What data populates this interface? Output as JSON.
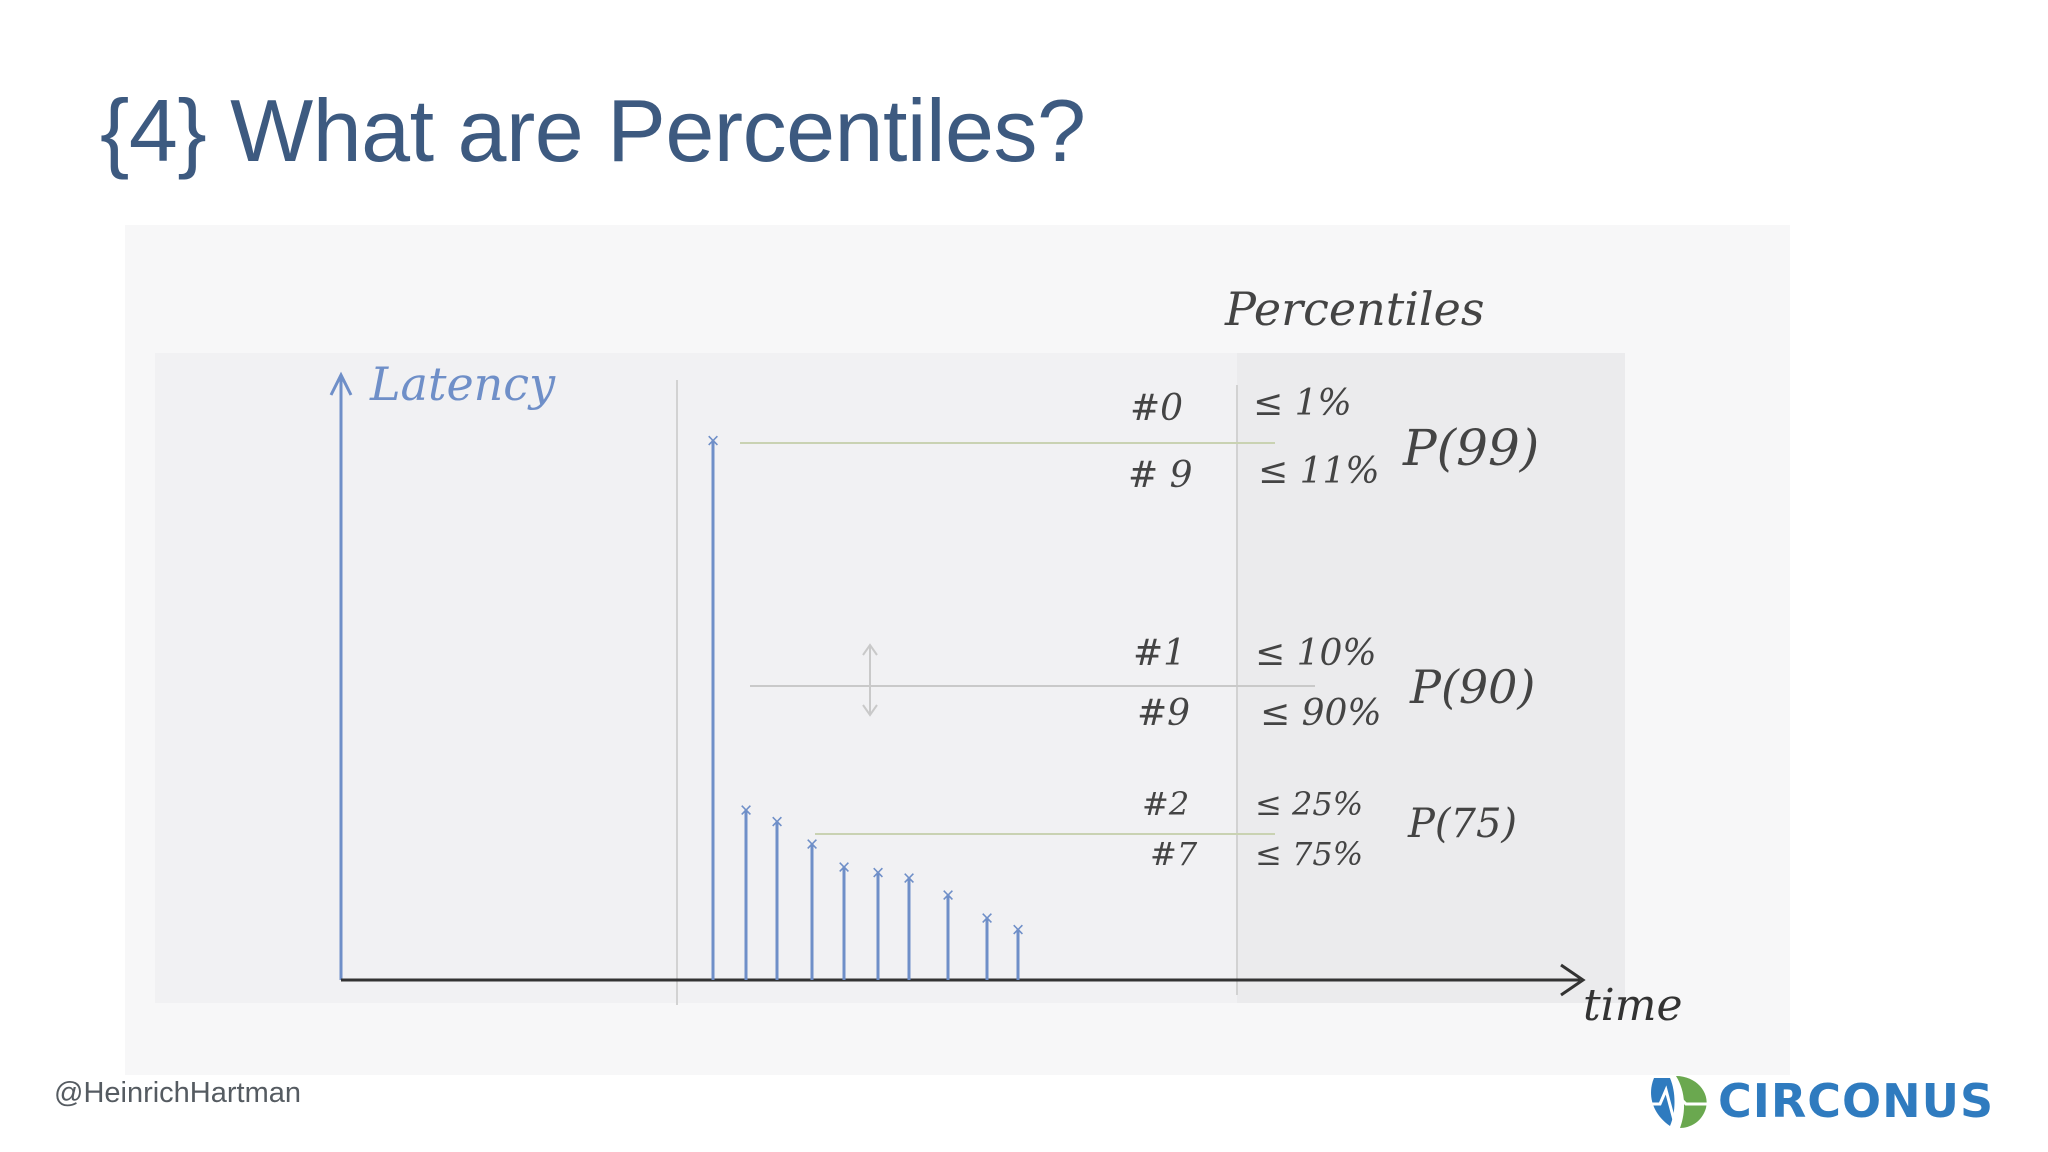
{
  "slide": {
    "title": "{4} What are Percentiles?",
    "footer_handle": "@HeinrichHartman",
    "logo_text": "CIRCONUS",
    "colors": {
      "title": "#3d5a80",
      "axis_blue": "#6f8fc8",
      "logo_blue": "#2f7bbf",
      "logo_green": "#6aa84f"
    }
  },
  "sketch": {
    "y_axis_label": "Latency",
    "x_axis_label": "time",
    "column_heading": "Percentiles",
    "groups": [
      {
        "rank_top": "#0",
        "rank_bottom": "# 9",
        "pct_top": "≤ 1%",
        "pct_bottom": "≤ 11%",
        "percentile": "P(99)"
      },
      {
        "rank_top": "#1",
        "rank_bottom": "#9",
        "pct_top": "≤ 10%",
        "pct_bottom": "≤ 90%",
        "percentile": "P(90)"
      },
      {
        "rank_top": "#2",
        "rank_bottom": "#7",
        "pct_top": "≤ 25%",
        "pct_bottom": "≤ 75%",
        "percentile": "P(75)"
      }
    ],
    "samples": [
      9.5,
      3.0,
      2.8,
      2.4,
      2.0,
      1.9,
      1.8,
      1.5,
      1.1,
      0.9
    ]
  }
}
